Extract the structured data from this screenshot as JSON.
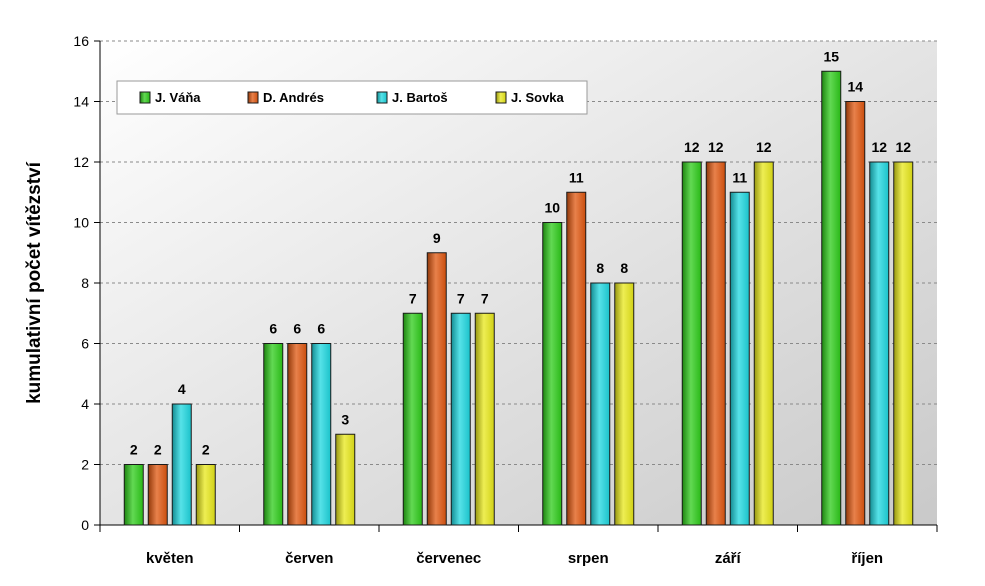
{
  "chart_data": {
    "type": "bar",
    "title": "",
    "xlabel": "",
    "ylabel": "kumulativní počet vítězství",
    "ylim": [
      0,
      16
    ],
    "yticks": [
      0,
      2,
      4,
      6,
      8,
      10,
      12,
      14,
      16
    ],
    "grid": true,
    "legend_position": "top-left",
    "categories": [
      "květen",
      "červen",
      "červenec",
      "srpen",
      "září",
      "říjen"
    ],
    "series": [
      {
        "name": "J. Váňa",
        "color": "#2ecc1a",
        "values": [
          2,
          6,
          7,
          10,
          12,
          15
        ]
      },
      {
        "name": "D. Andrés",
        "color": "#e0570f",
        "values": [
          2,
          6,
          9,
          11,
          12,
          14
        ]
      },
      {
        "name": "J. Bartoš",
        "color": "#1ed8e0",
        "values": [
          4,
          6,
          7,
          8,
          11,
          12
        ]
      },
      {
        "name": "J. Sovka",
        "color": "#e8e81a",
        "values": [
          2,
          3,
          7,
          8,
          12,
          12
        ]
      }
    ]
  }
}
